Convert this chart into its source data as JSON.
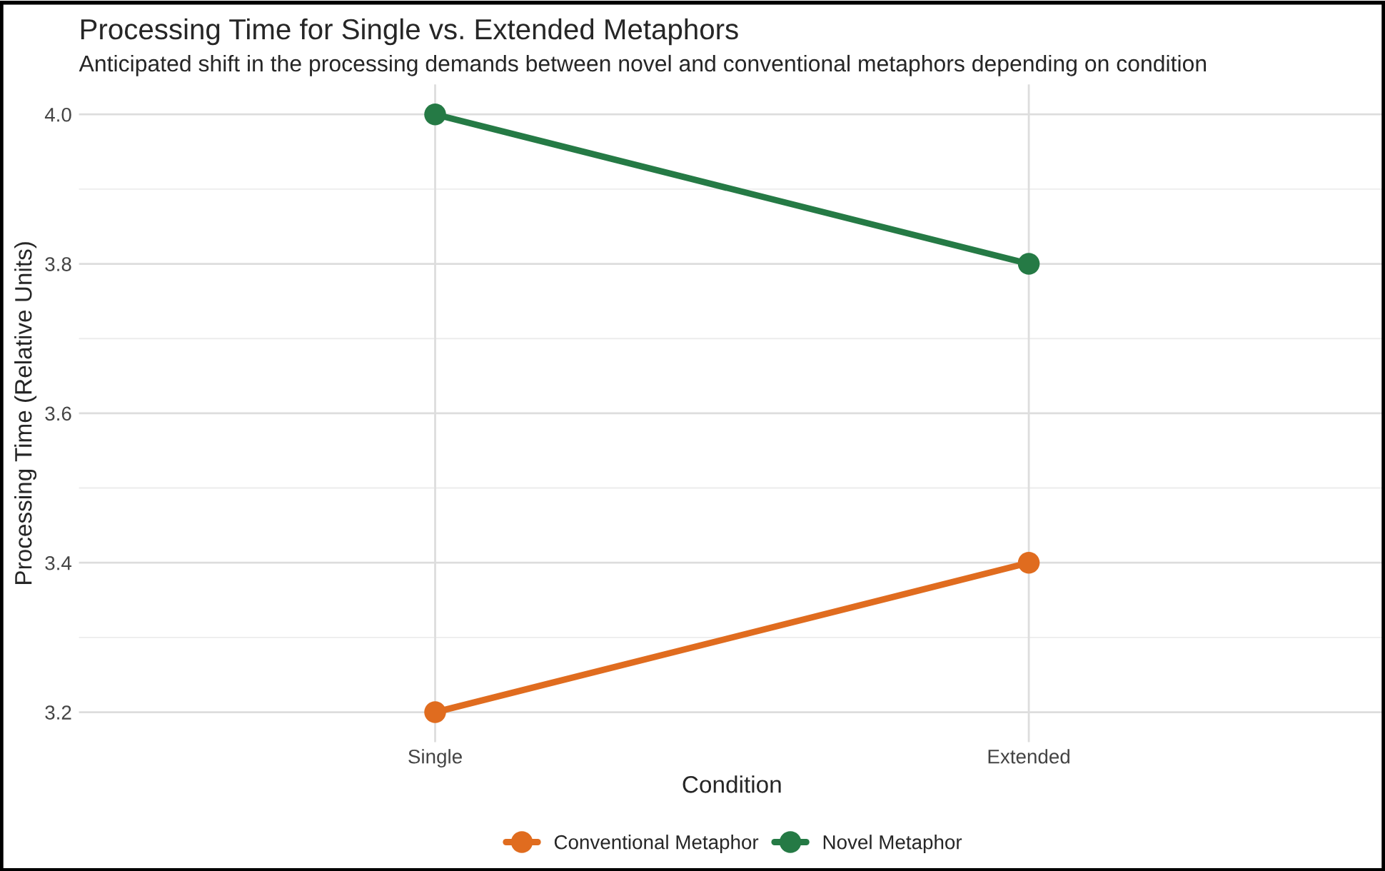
{
  "chart_data": {
    "type": "line",
    "title": "Processing Time for Single vs. Extended Metaphors",
    "subtitle": "Anticipated shift in the processing demands between novel and conventional metaphors depending on condition",
    "xlabel": "Condition",
    "ylabel": "Processing Time (Relative Units)",
    "categories": [
      "Single",
      "Extended"
    ],
    "series": [
      {
        "name": "Conventional Metaphor",
        "color": "#e06c1f",
        "values": [
          3.2,
          3.4
        ]
      },
      {
        "name": "Novel Metaphor",
        "color": "#257a45",
        "values": [
          4.0,
          3.8
        ]
      }
    ],
    "ylim": [
      3.16,
      4.04
    ],
    "yticks": [
      3.2,
      3.4,
      3.6,
      3.8,
      {
        "value": 4.0,
        "label": "4.0"
      }
    ],
    "grid": true,
    "legend": "bottom",
    "marker": "circle",
    "line_style": "solid"
  }
}
